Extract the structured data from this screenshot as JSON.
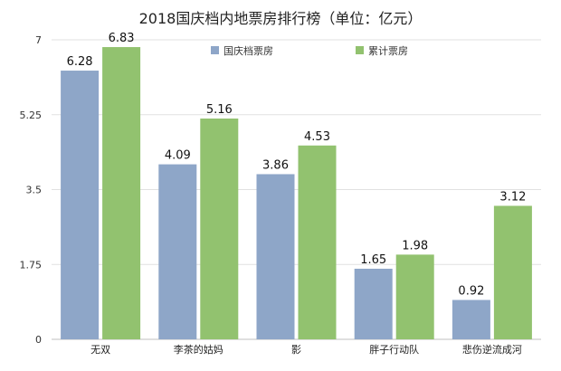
{
  "chart_data": {
    "type": "bar",
    "title": "2018国庆档内地票房排行榜（单位：亿元）",
    "categories": [
      "无双",
      "李茶的姑妈",
      "影",
      "胖子行动队",
      "悲伤逆流成河"
    ],
    "series": [
      {
        "name": "国庆档票房",
        "values": [
          6.28,
          4.09,
          3.86,
          1.65,
          0.92
        ],
        "color": "#8ea6c8"
      },
      {
        "name": "累计票房",
        "values": [
          6.83,
          5.16,
          4.53,
          1.98,
          3.12
        ],
        "color": "#92c26f"
      }
    ],
    "value_labels": {
      "s0": [
        "6.28",
        "4.09",
        "3.86",
        "1.65",
        "0.92"
      ],
      "s1": [
        "6.83",
        "5.16",
        "4.53",
        "1.98",
        "3.12"
      ]
    },
    "yticks": [
      "0",
      "1.75",
      "3.5",
      "5.25",
      "7"
    ],
    "ytick_values": [
      0,
      1.75,
      3.5,
      5.25,
      7
    ],
    "ylim": [
      0,
      7
    ],
    "grid": true,
    "legend_position": "top-center"
  }
}
